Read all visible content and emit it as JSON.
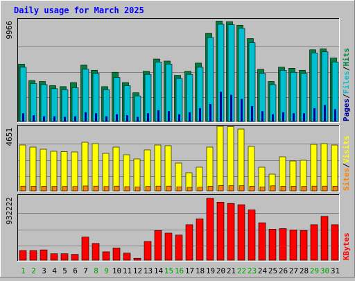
{
  "chart_data": {
    "type": "bar",
    "title": "Daily usage for March 2025",
    "categories": [
      "1",
      "2",
      "3",
      "4",
      "5",
      "6",
      "7",
      "8",
      "9",
      "10",
      "11",
      "12",
      "13",
      "14",
      "15",
      "16",
      "17",
      "18",
      "19",
      "20",
      "21",
      "22",
      "23",
      "24",
      "25",
      "26",
      "27",
      "28",
      "29",
      "30",
      "31"
    ],
    "weekend_days": [
      "1",
      "2",
      "8",
      "9",
      "15",
      "16",
      "22",
      "23",
      "29",
      "30"
    ],
    "panels": [
      {
        "id": "top",
        "y_tick_label": "9966",
        "ylim": [
          0,
          9966
        ],
        "right_label_parts": [
          "Pages",
          "/",
          "Files",
          "/",
          "Hits"
        ],
        "series": [
          {
            "name": "Hits",
            "color": "#008040",
            "values": [
              5600,
              4000,
              3900,
              3500,
              3400,
              3800,
              5500,
              5000,
              3400,
              4800,
              3800,
              2800,
              4900,
              6100,
              5900,
              4500,
              4900,
              5700,
              8600,
              9800,
              9750,
              9400,
              8100,
              5100,
              3900,
              5300,
              5200,
              5000,
              7000,
              7100,
              6200
            ]
          },
          {
            "name": "Files",
            "color": "#00c0d0",
            "values": [
              5500,
              3900,
              3800,
              3400,
              3300,
              3500,
              5300,
              4900,
              3300,
              4500,
              3700,
              2700,
              4800,
              6000,
              5800,
              4400,
              4800,
              5500,
              8400,
              9700,
              9650,
              9300,
              7900,
              4900,
              3800,
              5200,
              5000,
              4900,
              6900,
              7000,
              6000
            ]
          },
          {
            "name": "Pages",
            "color": "#0000a0",
            "values": [
              800,
              600,
              500,
              500,
              450,
              500,
              900,
              800,
              500,
              700,
              600,
              450,
              800,
              1100,
              1000,
              700,
              900,
              1300,
              1700,
              2900,
              2600,
              2200,
              1500,
              1000,
              700,
              900,
              800,
              800,
              1300,
              1600,
              1200
            ]
          }
        ]
      },
      {
        "id": "middle",
        "y_tick_label": "4651",
        "ylim": [
          0,
          4651
        ],
        "right_label_parts": [
          "Sites",
          "/",
          "Visits"
        ],
        "series": [
          {
            "name": "Visits",
            "color": "#ffff00",
            "values": [
              3300,
              3150,
              3000,
              2850,
              2820,
              2800,
              3500,
              3400,
              2700,
              3150,
              2600,
              2300,
              2950,
              3300,
              3250,
              2000,
              1300,
              1700,
              3150,
              4650,
              4630,
              4450,
              3200,
              1700,
              1200,
              2450,
              2150,
              2200,
              3350,
              3400,
              3300
            ]
          },
          {
            "name": "Sites",
            "color": "#ff8000",
            "values": [
              340,
              330,
              330,
              320,
              320,
              310,
              350,
              340,
              310,
              340,
              300,
              280,
              320,
              340,
              340,
              290,
              250,
              260,
              330,
              380,
              370,
              370,
              330,
              280,
              360,
              330,
              330,
              320,
              340,
              340,
              330
            ]
          }
        ]
      },
      {
        "id": "bottom",
        "y_tick_label": "932222",
        "ylim": [
          0,
          1000000
        ],
        "right_label_parts": [
          "KBytes"
        ],
        "series": [
          {
            "name": "KBytes",
            "color": "#ff0000",
            "values": [
              150000,
              150000,
              160000,
              100000,
              100000,
              90000,
              360000,
              260000,
              130000,
              190000,
              110000,
              30000,
              290000,
              460000,
              420000,
              390000,
              550000,
              640000,
              960000,
              900000,
              880000,
              860000,
              780000,
              580000,
              480000,
              490000,
              470000,
              460000,
              550000,
              680000,
              550000
            ]
          }
        ]
      }
    ]
  }
}
